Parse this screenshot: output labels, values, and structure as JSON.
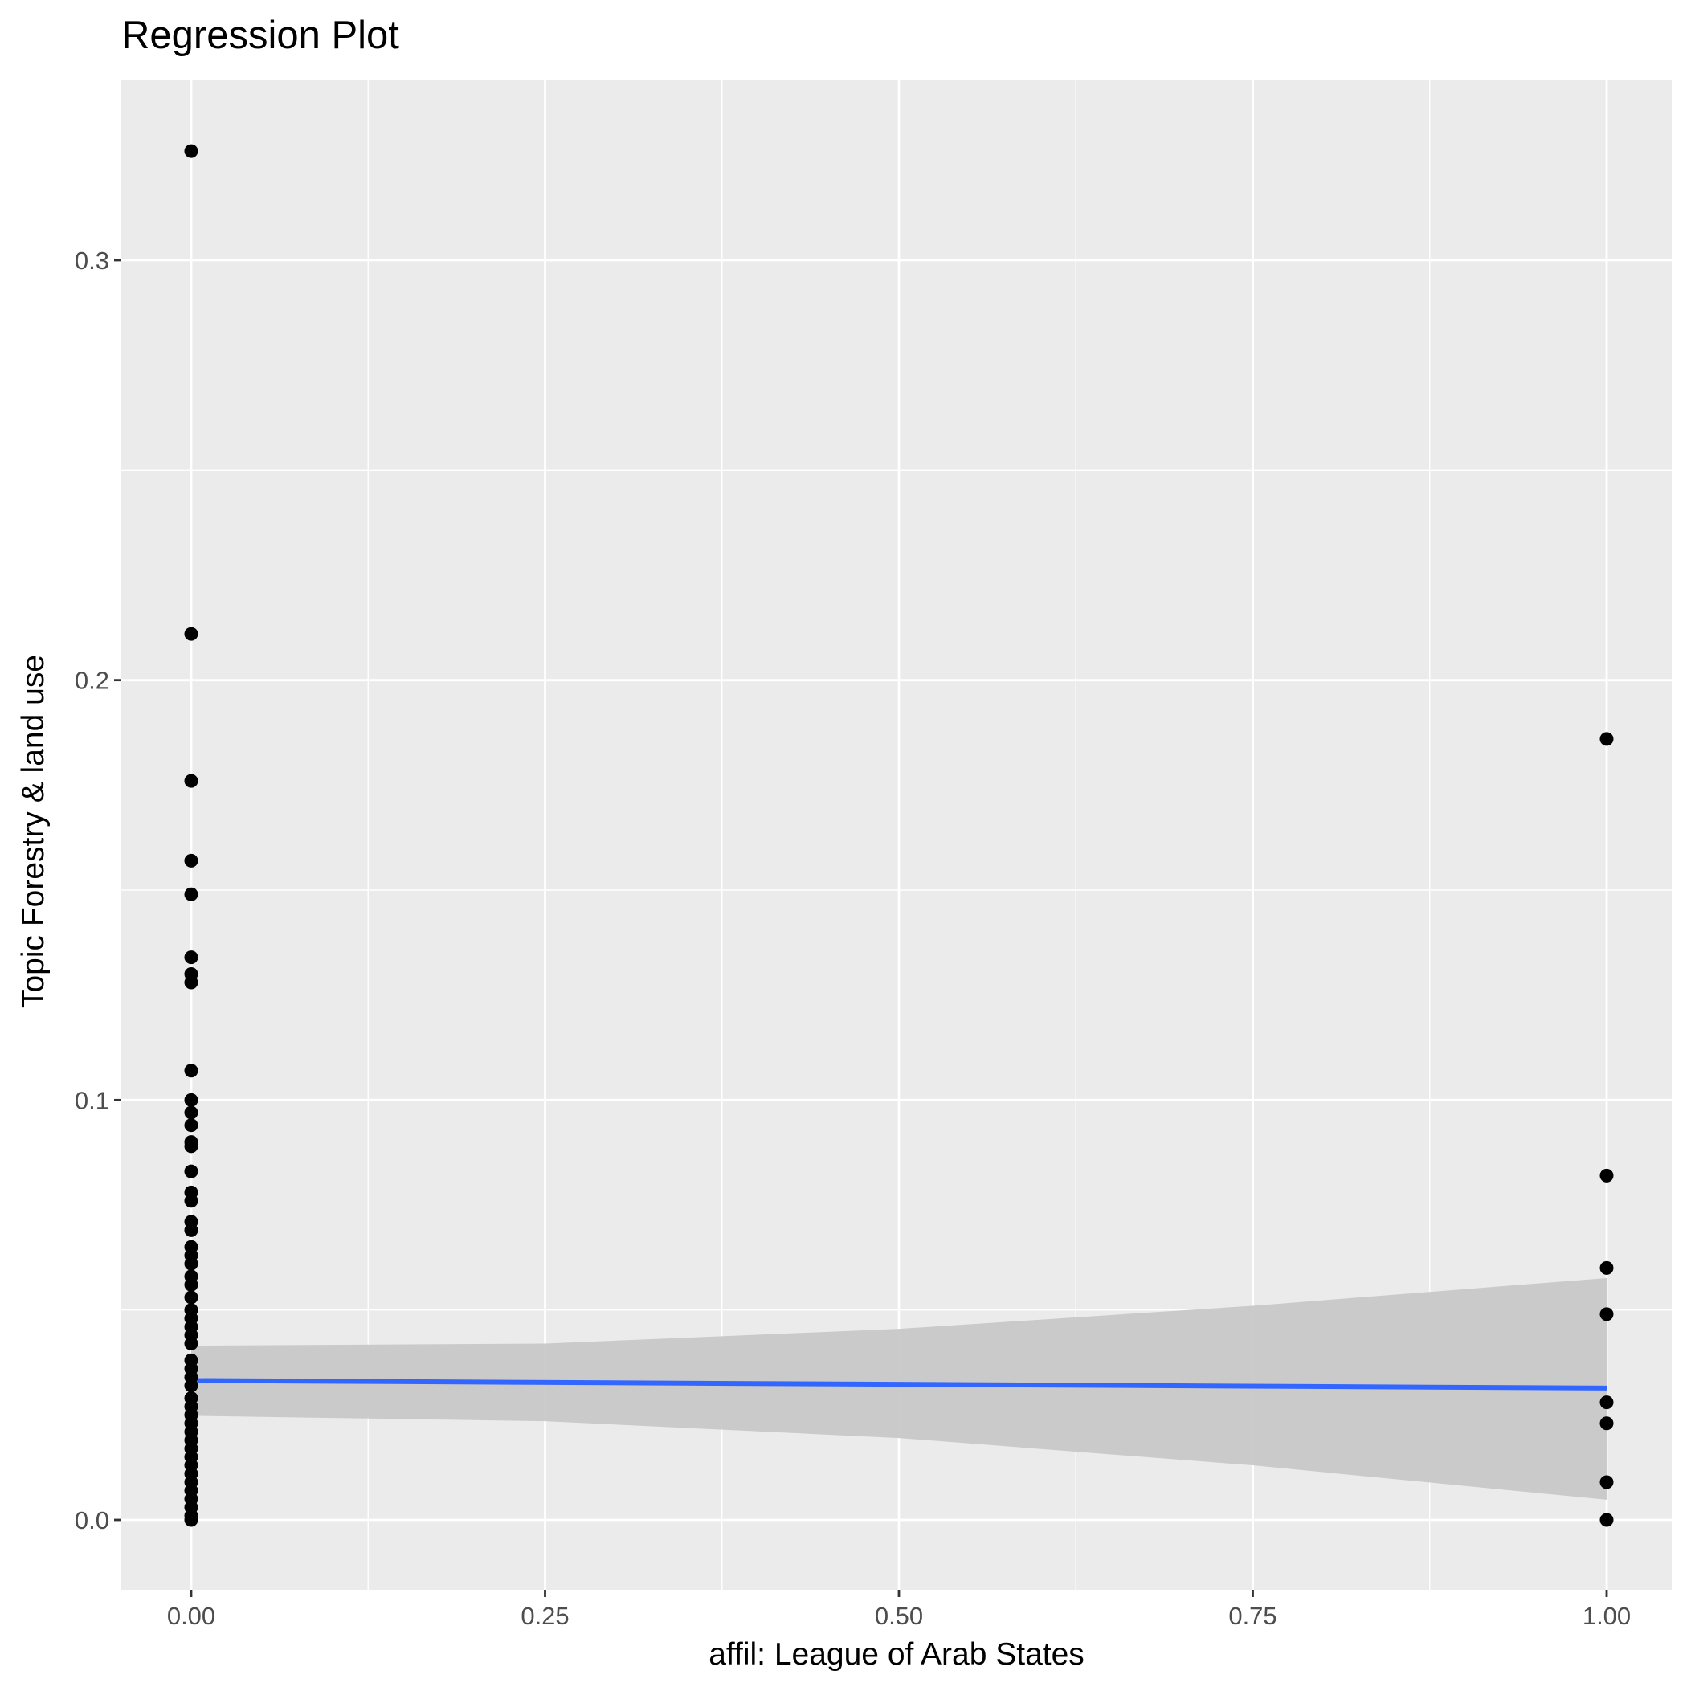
{
  "chart_data": {
    "type": "scatter",
    "title": "Regression Plot",
    "xlabel": "affil: League of Arab States",
    "ylabel": "Topic Forestry & land use",
    "xlim": [
      -0.05,
      1.05
    ],
    "ylim": [
      -0.015,
      0.34
    ],
    "x_ticks": [
      0.0,
      0.25,
      0.5,
      0.75,
      1.0
    ],
    "x_tick_labels": [
      "0.00",
      "0.25",
      "0.50",
      "0.75",
      "1.00"
    ],
    "y_ticks": [
      0.0,
      0.1,
      0.2,
      0.3
    ],
    "y_tick_labels": [
      "0.0",
      "0.1",
      "0.2",
      "0.3"
    ],
    "grid": true,
    "legend": "none",
    "colors": {
      "panel_background": "#ebebeb",
      "grid": "#ffffff",
      "points": "#000000",
      "fit_line": "#3366ff",
      "confidence_band": "#c8c8c8"
    },
    "series": [
      {
        "values": [
          {
            "x": 0,
            "y": 0.326
          },
          {
            "x": 0,
            "y": 0.211
          },
          {
            "x": 0,
            "y": 0.176
          },
          {
            "x": 0,
            "y": 0.157
          },
          {
            "x": 0,
            "y": 0.149
          },
          {
            "x": 0,
            "y": 0.134
          },
          {
            "x": 0,
            "y": 0.13
          },
          {
            "x": 0,
            "y": 0.128
          },
          {
            "x": 0,
            "y": 0.107
          },
          {
            "x": 0,
            "y": 0.1
          },
          {
            "x": 0,
            "y": 0.097
          },
          {
            "x": 0,
            "y": 0.094
          },
          {
            "x": 0,
            "y": 0.09
          },
          {
            "x": 0,
            "y": 0.089
          },
          {
            "x": 0,
            "y": 0.083
          },
          {
            "x": 0,
            "y": 0.078
          },
          {
            "x": 0,
            "y": 0.076
          },
          {
            "x": 0,
            "y": 0.071
          },
          {
            "x": 0,
            "y": 0.069
          },
          {
            "x": 0,
            "y": 0.065
          },
          {
            "x": 0,
            "y": 0.063
          },
          {
            "x": 0,
            "y": 0.061
          },
          {
            "x": 0,
            "y": 0.058
          },
          {
            "x": 0,
            "y": 0.056
          },
          {
            "x": 0,
            "y": 0.053
          },
          {
            "x": 0,
            "y": 0.05
          },
          {
            "x": 0,
            "y": 0.048
          },
          {
            "x": 0,
            "y": 0.046
          },
          {
            "x": 0,
            "y": 0.044
          },
          {
            "x": 0,
            "y": 0.042
          },
          {
            "x": 0,
            "y": 0.038
          },
          {
            "x": 0,
            "y": 0.036
          },
          {
            "x": 0,
            "y": 0.034
          },
          {
            "x": 0,
            "y": 0.032
          },
          {
            "x": 0,
            "y": 0.029
          },
          {
            "x": 0,
            "y": 0.027
          },
          {
            "x": 0,
            "y": 0.025
          },
          {
            "x": 0,
            "y": 0.023
          },
          {
            "x": 0,
            "y": 0.021
          },
          {
            "x": 0,
            "y": 0.019
          },
          {
            "x": 0,
            "y": 0.017
          },
          {
            "x": 0,
            "y": 0.015
          },
          {
            "x": 0,
            "y": 0.013
          },
          {
            "x": 0,
            "y": 0.011
          },
          {
            "x": 0,
            "y": 0.009
          },
          {
            "x": 0,
            "y": 0.007
          },
          {
            "x": 0,
            "y": 0.005
          },
          {
            "x": 0,
            "y": 0.003
          },
          {
            "x": 0,
            "y": 0.001
          },
          {
            "x": 0,
            "y": 0.0
          },
          {
            "x": 1,
            "y": 0.186
          },
          {
            "x": 1,
            "y": 0.082
          },
          {
            "x": 1,
            "y": 0.06
          },
          {
            "x": 1,
            "y": 0.049
          },
          {
            "x": 1,
            "y": 0.028
          },
          {
            "x": 1,
            "y": 0.023
          },
          {
            "x": 1,
            "y": 0.009
          },
          {
            "x": 1,
            "y": 0.0
          }
        ]
      }
    ],
    "regression": {
      "fit": [
        {
          "x": 0,
          "y": 0.0332
        },
        {
          "x": 1,
          "y": 0.0314
        }
      ],
      "ci_lower": [
        {
          "x": 0,
          "y": 0.0248
        },
        {
          "x": 0.25,
          "y": 0.0235
        },
        {
          "x": 0.5,
          "y": 0.0195
        },
        {
          "x": 0.75,
          "y": 0.013
        },
        {
          "x": 1,
          "y": 0.0048
        }
      ],
      "ci_upper": [
        {
          "x": 0,
          "y": 0.0415
        },
        {
          "x": 0.25,
          "y": 0.042
        },
        {
          "x": 0.5,
          "y": 0.0455
        },
        {
          "x": 0.75,
          "y": 0.051
        },
        {
          "x": 1,
          "y": 0.0576
        }
      ]
    }
  }
}
